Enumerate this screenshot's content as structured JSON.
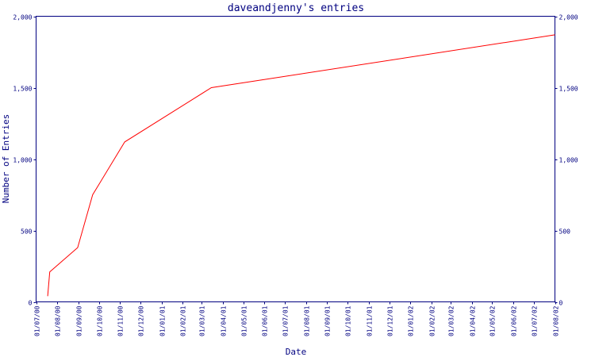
{
  "chart_data": {
    "type": "line",
    "title": "daveandjenny's entries",
    "xlabel": "Date",
    "ylabel": "Number of Entries",
    "ylim": [
      0,
      2000
    ],
    "y_ticks": [
      "0",
      "500",
      "1,000",
      "1,500",
      "2,000"
    ],
    "y_tick_values": [
      0,
      500,
      1000,
      1500,
      2000
    ],
    "x_ticks": [
      "01/07/00",
      "01/08/00",
      "01/09/00",
      "01/10/00",
      "01/11/00",
      "01/12/00",
      "01/01/01",
      "01/02/01",
      "01/03/01",
      "01/04/01",
      "01/05/01",
      "01/06/01",
      "01/07/01",
      "01/08/01",
      "01/09/01",
      "01/10/01",
      "01/11/01",
      "01/12/01",
      "01/01/02",
      "01/02/02",
      "01/03/02",
      "01/04/02",
      "01/05/02",
      "01/06/02",
      "01/07/02",
      "01/08/02"
    ],
    "grid": false,
    "series": [
      {
        "color": "#ff0000",
        "x": [
          "2000-07-18",
          "2000-07-21",
          "2000-08-31",
          "2000-09-22",
          "2000-11-08",
          "2001-03-15",
          "2002-08-01"
        ],
        "y": [
          40,
          210,
          380,
          750,
          1120,
          1500,
          1870
        ]
      }
    ],
    "colors": {
      "axis": "#000080",
      "line": "#ff0000",
      "background": "#ffffff"
    }
  }
}
